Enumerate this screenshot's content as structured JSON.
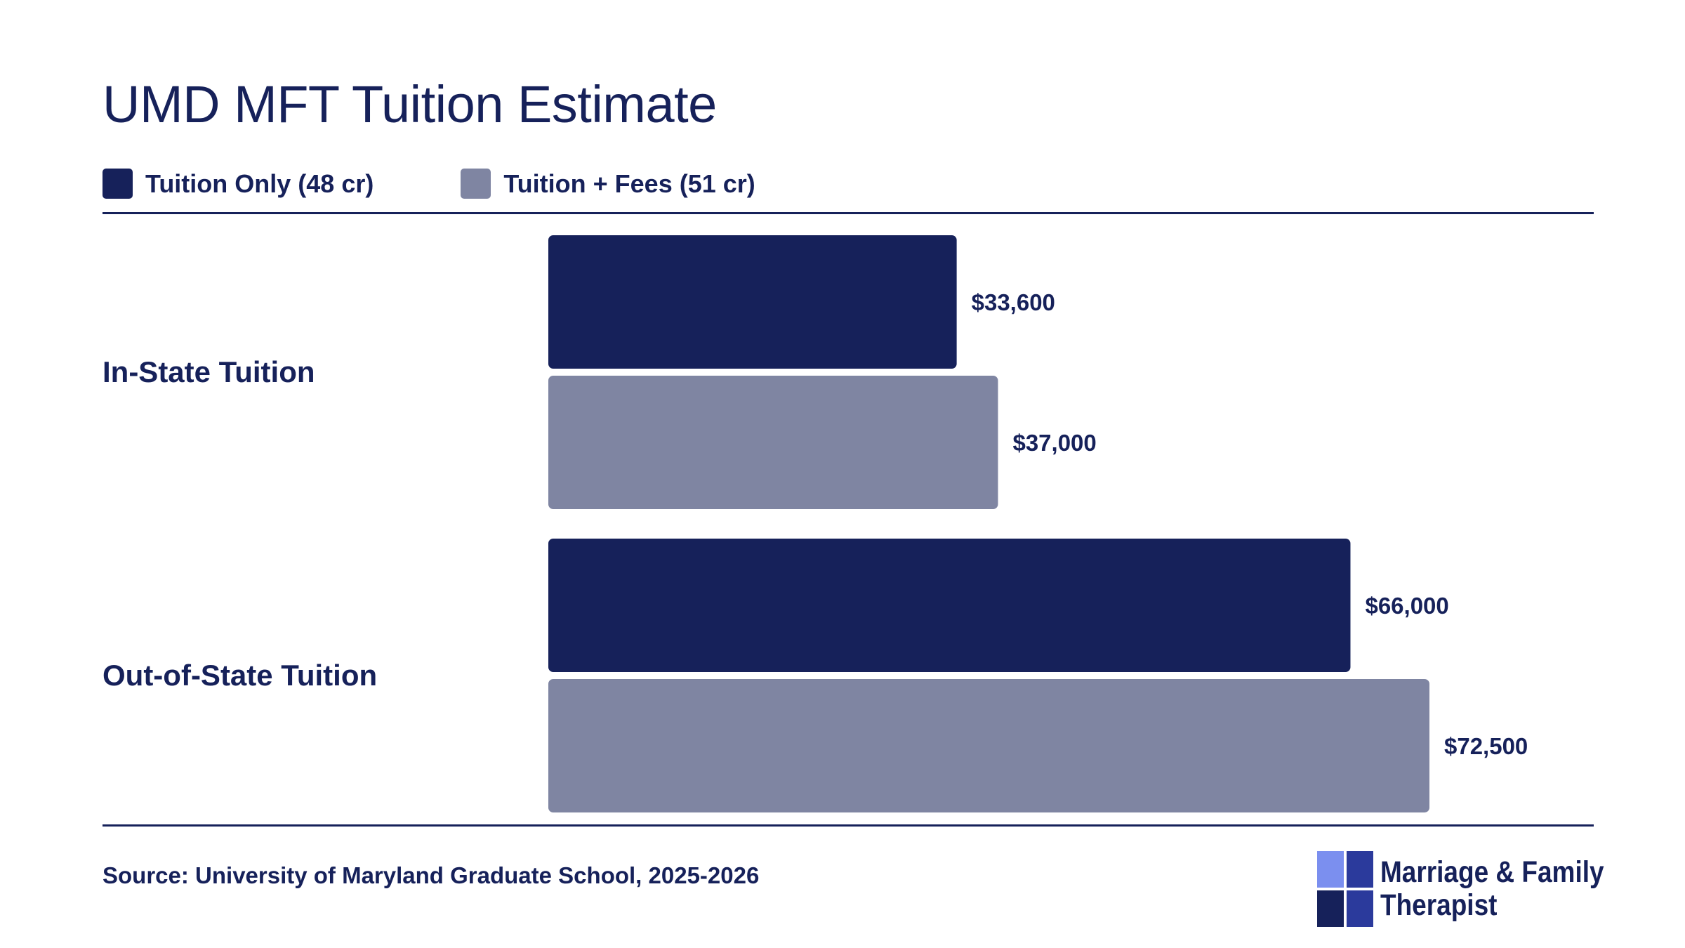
{
  "title": "UMD MFT Tuition Estimate",
  "legend": [
    {
      "label": "Tuition Only (48 cr)",
      "color": "#16215a"
    },
    {
      "label": "Tuition + Fees (51 cr)",
      "color": "#7f85a2"
    }
  ],
  "source": "Source: University of Maryland Graduate School, 2025-2026",
  "brand": {
    "line1": "Marriage & Family",
    "line2": "Therapist",
    "icon": "quad-petal-logo-icon",
    "colors": [
      "#7b8fef",
      "#16215a",
      "#2b3a9c"
    ]
  },
  "chart_data": {
    "type": "bar",
    "orientation": "horizontal",
    "categories": [
      "In-State Tuition",
      "Out-of-State Tuition"
    ],
    "series": [
      {
        "name": "Tuition Only (48 cr)",
        "color": "#16215a",
        "values": [
          33600,
          66000
        ],
        "labels": [
          "$33,600",
          "$66,000"
        ]
      },
      {
        "name": "Tuition + Fees (51 cr)",
        "color": "#7f85a2",
        "values": [
          37000,
          72500
        ],
        "labels": [
          "$37,000",
          "$72,500"
        ]
      }
    ],
    "xlim": [
      0,
      72500
    ],
    "grid": false,
    "legend_position": "top-left"
  }
}
